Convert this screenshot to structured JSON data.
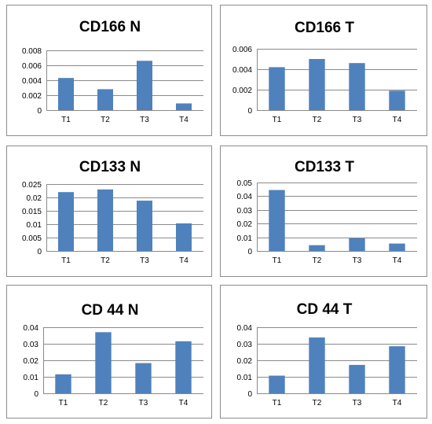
{
  "colors": {
    "bar": "#4F81BD",
    "grid": "#8a8a8a"
  },
  "chart_data": [
    {
      "type": "bar",
      "title": "CD166 N",
      "categories": [
        "T1",
        "T2",
        "T3",
        "T4"
      ],
      "values": [
        0.0043,
        0.0028,
        0.0066,
        0.0009
      ],
      "ylim": [
        0,
        0.008
      ],
      "yticks": [
        "0",
        "0.002",
        "0.004",
        "0.006",
        "0.008"
      ],
      "yticks_values": [
        0,
        0.002,
        0.004,
        0.006,
        0.008
      ],
      "grid": true,
      "legend": "none"
    },
    {
      "type": "bar",
      "title": "CD166 T",
      "categories": [
        "T1",
        "T2",
        "T3",
        "T4"
      ],
      "values": [
        0.0042,
        0.005,
        0.0046,
        0.0019
      ],
      "ylim": [
        0,
        0.006
      ],
      "yticks": [
        "0",
        "0.002",
        "0.004",
        "0.006"
      ],
      "yticks_values": [
        0,
        0.002,
        0.004,
        0.006
      ],
      "grid": true,
      "legend": "none"
    },
    {
      "type": "bar",
      "title": "CD133 N",
      "categories": [
        "T1",
        "T2",
        "T3",
        "T4"
      ],
      "values": [
        0.022,
        0.023,
        0.0188,
        0.0103
      ],
      "ylim": [
        0,
        0.025
      ],
      "yticks": [
        "0",
        "0.005",
        "0.01",
        "0.015",
        "0.02",
        "0.025"
      ],
      "yticks_values": [
        0,
        0.005,
        0.01,
        0.015,
        0.02,
        0.025
      ],
      "grid": true,
      "legend": "none"
    },
    {
      "type": "bar",
      "title": "CD133 T",
      "categories": [
        "T1",
        "T2",
        "T3",
        "T4"
      ],
      "values": [
        0.0445,
        0.0042,
        0.0092,
        0.0054
      ],
      "ylim": [
        0,
        0.05
      ],
      "yticks": [
        "0",
        "0.01",
        "0.02",
        "0.03",
        "0.04",
        "0.05"
      ],
      "yticks_values": [
        0,
        0.01,
        0.02,
        0.03,
        0.04,
        0.05
      ],
      "grid": true,
      "legend": "none"
    },
    {
      "type": "bar",
      "title": "CD 44 N",
      "categories": [
        "T1",
        "T2",
        "T3",
        "T4"
      ],
      "values": [
        0.0115,
        0.037,
        0.0183,
        0.0315
      ],
      "ylim": [
        0,
        0.04
      ],
      "yticks": [
        "0",
        "0.01",
        "0.02",
        "0.03",
        "0.04"
      ],
      "yticks_values": [
        0,
        0.01,
        0.02,
        0.03,
        0.04
      ],
      "grid": true,
      "legend": "none"
    },
    {
      "type": "bar",
      "title": "CD 44 T",
      "categories": [
        "T1",
        "T2",
        "T3",
        "T4"
      ],
      "values": [
        0.0107,
        0.0338,
        0.0172,
        0.0285
      ],
      "ylim": [
        0,
        0.04
      ],
      "yticks": [
        "0",
        "0.01",
        "0.02",
        "0.03",
        "0.04"
      ],
      "yticks_values": [
        0,
        0.01,
        0.02,
        0.03,
        0.04
      ],
      "grid": true,
      "legend": "none"
    }
  ]
}
